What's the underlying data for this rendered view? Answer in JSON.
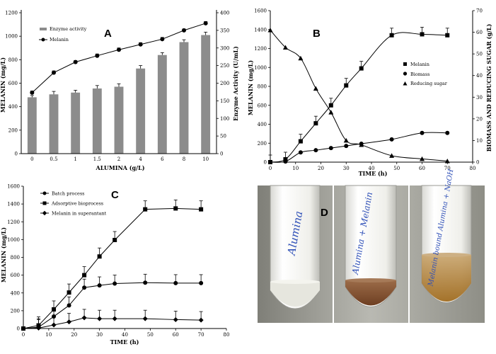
{
  "panel_labels": [
    "A",
    "B",
    "C",
    "D"
  ],
  "chart_data": [
    {
      "panel": "A",
      "type": "bar+line",
      "categories": [
        "0",
        "0.5",
        "1",
        "1.5",
        "2",
        "4",
        "6",
        "8",
        "10"
      ],
      "xlabel": "ALUMINA (g/L)",
      "ylabel_left": "MELANIN (mg/L)",
      "ylabel_right": "Enzyme Activity (U/mL)",
      "left_ylim": [
        0,
        1200
      ],
      "left_ticks": [
        "0",
        "200",
        "400",
        "600",
        "800",
        "1000",
        "1200"
      ],
      "right_ylim": [
        0,
        400
      ],
      "right_ticks": [
        "0",
        "50",
        "100",
        "150",
        "200",
        "250",
        "300",
        "350",
        "400"
      ],
      "series": [
        {
          "name": "Enzyme activity",
          "kind": "bar",
          "axis": "left",
          "values": [
            480,
            505,
            520,
            555,
            570,
            725,
            840,
            950,
            1010
          ],
          "errors": [
            15,
            25,
            20,
            25,
            25,
            25,
            20,
            20,
            25
          ]
        },
        {
          "name": "Melanin",
          "kind": "line",
          "axis": "right",
          "values": [
            173,
            230,
            260,
            278,
            295,
            310,
            325,
            350,
            370
          ],
          "errors": [
            5,
            5,
            4,
            5,
            5,
            5,
            5,
            4,
            5
          ]
        }
      ]
    },
    {
      "panel": "B",
      "type": "scatter+line",
      "xlabel": "TIME (h)",
      "ylabel_left": "MELANIN (mg/L)",
      "ylabel_right": "BIOMASS AND REDUCING SUGAR (g/L)",
      "xlim": [
        0,
        80
      ],
      "x_ticks": [
        "0",
        "10",
        "20",
        "30",
        "40",
        "50",
        "60",
        "70",
        "80"
      ],
      "left_ylim": [
        0,
        1600
      ],
      "left_ticks": [
        "0",
        "200",
        "400",
        "600",
        "800",
        "1000",
        "1200",
        "1400",
        "1600"
      ],
      "right_ylim": [
        0,
        70
      ],
      "right_ticks": [
        "0",
        "10",
        "20",
        "30",
        "40",
        "50",
        "60",
        "70"
      ],
      "series": [
        {
          "name": "Melanin",
          "marker": "square",
          "axis": "left",
          "x": [
            0,
            6,
            12,
            18,
            24,
            30,
            36,
            48,
            60,
            70
          ],
          "y": [
            0,
            30,
            220,
            410,
            600,
            810,
            990,
            1340,
            1350,
            1340
          ]
        },
        {
          "name": "Biomass",
          "marker": "circle",
          "axis": "right",
          "x": [
            0,
            6,
            12,
            18,
            24,
            30,
            36,
            48,
            60,
            70
          ],
          "y": [
            0,
            0.3,
            4.5,
            5.5,
            6.5,
            7.5,
            8.5,
            10.5,
            13.5,
            13.5
          ]
        },
        {
          "name": "Reducing sugar",
          "marker": "triangle",
          "axis": "right",
          "x": [
            0,
            6,
            12,
            18,
            24,
            30,
            36,
            48,
            60,
            70
          ],
          "y": [
            61,
            53,
            48,
            34,
            23,
            10,
            8,
            3,
            1.5,
            0.5
          ]
        }
      ]
    },
    {
      "panel": "C",
      "type": "line",
      "xlabel": "TIME (h)",
      "ylabel": "MELANIN (mg/L)",
      "xlim": [
        0,
        80
      ],
      "x_ticks": [
        "0",
        "10",
        "20",
        "30",
        "40",
        "50",
        "60",
        "70",
        "80"
      ],
      "ylim": [
        0,
        1600
      ],
      "y_ticks": [
        "0",
        "200",
        "400",
        "600",
        "800",
        "1000",
        "1200",
        "1400",
        "1600"
      ],
      "series": [
        {
          "name": "Batch process",
          "marker": "circle",
          "x": [
            0,
            6,
            12,
            18,
            24,
            30,
            36,
            48,
            60,
            70
          ],
          "y": [
            0,
            15,
            135,
            260,
            460,
            485,
            505,
            515,
            510,
            510
          ]
        },
        {
          "name": "Adsorptive bioprocess",
          "marker": "square",
          "x": [
            0,
            6,
            12,
            18,
            24,
            30,
            36,
            48,
            60,
            70
          ],
          "y": [
            0,
            35,
            215,
            405,
            600,
            810,
            995,
            1340,
            1350,
            1340
          ]
        },
        {
          "name": "Melanin in superantant",
          "marker": "diamond",
          "x": [
            0,
            6,
            12,
            18,
            24,
            30,
            36,
            48,
            60,
            70
          ],
          "y": [
            0,
            5,
            40,
            75,
            120,
            110,
            110,
            110,
            100,
            95
          ]
        }
      ]
    }
  ],
  "photo": {
    "panel": "D",
    "tubes": [
      {
        "label": "Alumina",
        "sediment": "#e3e3dc"
      },
      {
        "label": "Alumina + Melanin",
        "sediment": "#8a5a3a"
      },
      {
        "label": "Melanin bound Alumina + NaOH",
        "sediment": "#b07a1c"
      }
    ]
  }
}
